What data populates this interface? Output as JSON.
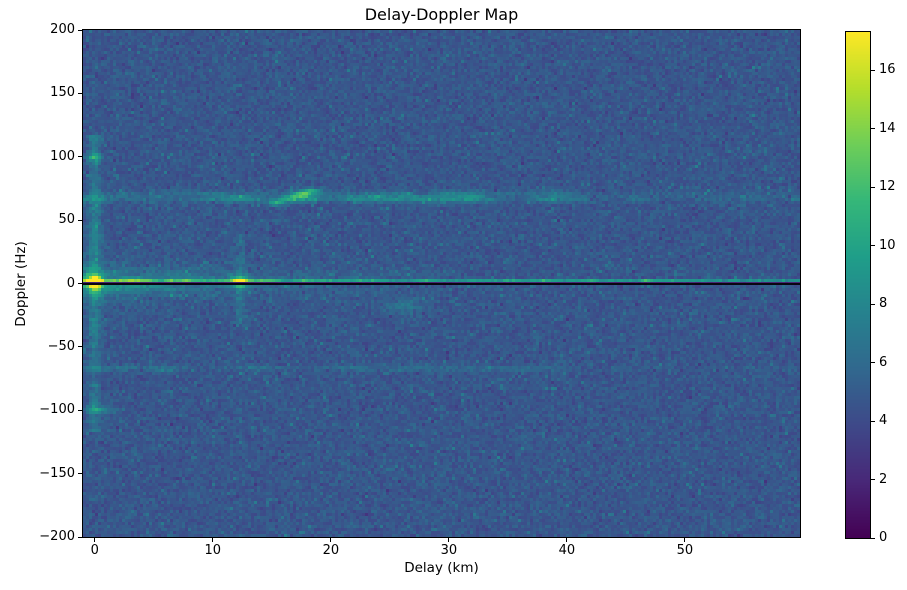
{
  "chart_data": {
    "type": "heatmap",
    "title": "Delay-Doppler Map",
    "xlabel": "Delay (km)",
    "ylabel": "Doppler (Hz)",
    "x_range_km": [
      -1,
      59.75
    ],
    "y_range_hz": [
      -200,
      200
    ],
    "x_ticks": [
      {
        "label": "0",
        "value": 0
      },
      {
        "label": "10",
        "value": 10
      },
      {
        "label": "20",
        "value": 20
      },
      {
        "label": "30",
        "value": 30
      },
      {
        "label": "40",
        "value": 40
      },
      {
        "label": "50",
        "value": 50
      }
    ],
    "y_ticks": [
      {
        "label": "200",
        "value": 200
      },
      {
        "label": "150",
        "value": 150
      },
      {
        "label": "100",
        "value": 100
      },
      {
        "label": "50",
        "value": 50
      },
      {
        "label": "0",
        "value": 0
      },
      {
        "label": "−50",
        "value": -50
      },
      {
        "label": "−100",
        "value": -100
      },
      {
        "label": "−150",
        "value": -150
      },
      {
        "label": "−200",
        "value": -200
      }
    ],
    "colorbar": {
      "min": 0,
      "max": 17.3,
      "ticks": [
        {
          "label": "0",
          "value": 0
        },
        {
          "label": "2",
          "value": 2
        },
        {
          "label": "4",
          "value": 4
        },
        {
          "label": "6",
          "value": 6
        },
        {
          "label": "8",
          "value": 8
        },
        {
          "label": "10",
          "value": 10
        },
        {
          "label": "12",
          "value": 12
        },
        {
          "label": "14",
          "value": 14
        },
        {
          "label": "16",
          "value": 16
        }
      ]
    },
    "colormap": {
      "name": "viridis",
      "stops": [
        "#440154",
        "#482878",
        "#3e4989",
        "#31688e",
        "#26828e",
        "#1f9e89",
        "#35b779",
        "#6ece58",
        "#b5de2b",
        "#fde725"
      ]
    },
    "noise_floor": {
      "mean": 4.7,
      "spread": 1.25
    },
    "axhline": {
      "doppler_hz": 0,
      "color": "#000000"
    },
    "features": [
      {
        "name": "surface-return-line",
        "type": "bright_hline",
        "doppler_hz": 1.5,
        "sigma_hz": 1.1,
        "amp_near": 6.8,
        "amp_far": 5.2
      },
      {
        "name": "zero-doppler-glow",
        "type": "glow_band",
        "doppler_hz": 1.5,
        "sigma_hz": 7,
        "amp": 3.4,
        "decay_km": 13
      },
      {
        "name": "wide-glow-left",
        "type": "glow_band",
        "doppler_hz": 0,
        "sigma_hz": 16,
        "amp": 1.3,
        "decay_km": 6
      },
      {
        "name": "specular-point",
        "type": "gauss",
        "delay_km": 0,
        "doppler_hz": 1.5,
        "amp": 12.6,
        "sd_km": 0.45,
        "sd_hz": 3.0
      },
      {
        "name": "specular-lower-lobe",
        "type": "gauss",
        "delay_km": 0,
        "doppler_hz": -4.5,
        "amp": 5.5,
        "sd_km": 0.4,
        "sd_hz": 2.5
      },
      {
        "name": "specular-vertical-streak",
        "type": "vline",
        "delay_km": 0,
        "sigma_km": 0.35,
        "amp": 2.6,
        "doppler_range": [
          -118,
          118
        ]
      },
      {
        "name": "target-12km",
        "type": "gauss",
        "delay_km": 12.3,
        "doppler_hz": 1.5,
        "amp": 6.5,
        "sd_km": 0.5,
        "sd_hz": 3.2
      },
      {
        "name": "target-12km-streak",
        "type": "vline",
        "delay_km": 12.3,
        "sigma_km": 0.3,
        "amp": 1.9,
        "doppler_range": [
          -32,
          38
        ]
      },
      {
        "name": "doppler-ambiguity-plus67",
        "type": "patchy_hline",
        "doppler_hz": 67,
        "sigma_hz": 2.3,
        "amp": 3.4,
        "delay_range": [
          -1,
          42
        ],
        "amp_far": 1.3
      },
      {
        "name": "ambiguity-upper-fringe",
        "type": "patchy_hline",
        "doppler_hz": 71.5,
        "sigma_hz": 1.6,
        "amp": 1.6,
        "delay_range": [
          2,
          40
        ],
        "amp_far": 0.4
      },
      {
        "name": "diagonal-streak",
        "type": "segment",
        "from_km_hz": [
          15.4,
          63.5
        ],
        "to_km_hz": [
          18.3,
          73
        ],
        "amp": 5.2,
        "width_km": 0.45
      },
      {
        "name": "doppler-ambiguity-minus67",
        "type": "patchy_hline",
        "doppler_hz": -67,
        "sigma_hz": 1.7,
        "amp": 1.5,
        "delay_range": [
          -1,
          40
        ],
        "amp_far": 0.4
      },
      {
        "name": "mirror-dot-plus100",
        "type": "gauss",
        "delay_km": 0,
        "doppler_hz": 100,
        "amp": 4.2,
        "sd_km": 0.5,
        "sd_hz": 2.2
      },
      {
        "name": "mirror-dot-minus100",
        "type": "gauss",
        "delay_km": 0.3,
        "doppler_hz": -100,
        "amp": 3.6,
        "sd_km": 0.8,
        "sd_hz": 2.0
      },
      {
        "name": "faint-blob-26km",
        "type": "gauss",
        "delay_km": 26.3,
        "doppler_hz": -18,
        "amp": 2.2,
        "sd_km": 1.0,
        "sd_hz": 4.5
      },
      {
        "name": "dc-notch-line",
        "type": "dark_hline",
        "doppler_hz": -1.0,
        "half_width_hz": 1.15,
        "value": 1.6
      }
    ]
  },
  "layout_colors": {
    "figure_background": "#ffffff",
    "spine": "#000000",
    "text": "#000000"
  }
}
